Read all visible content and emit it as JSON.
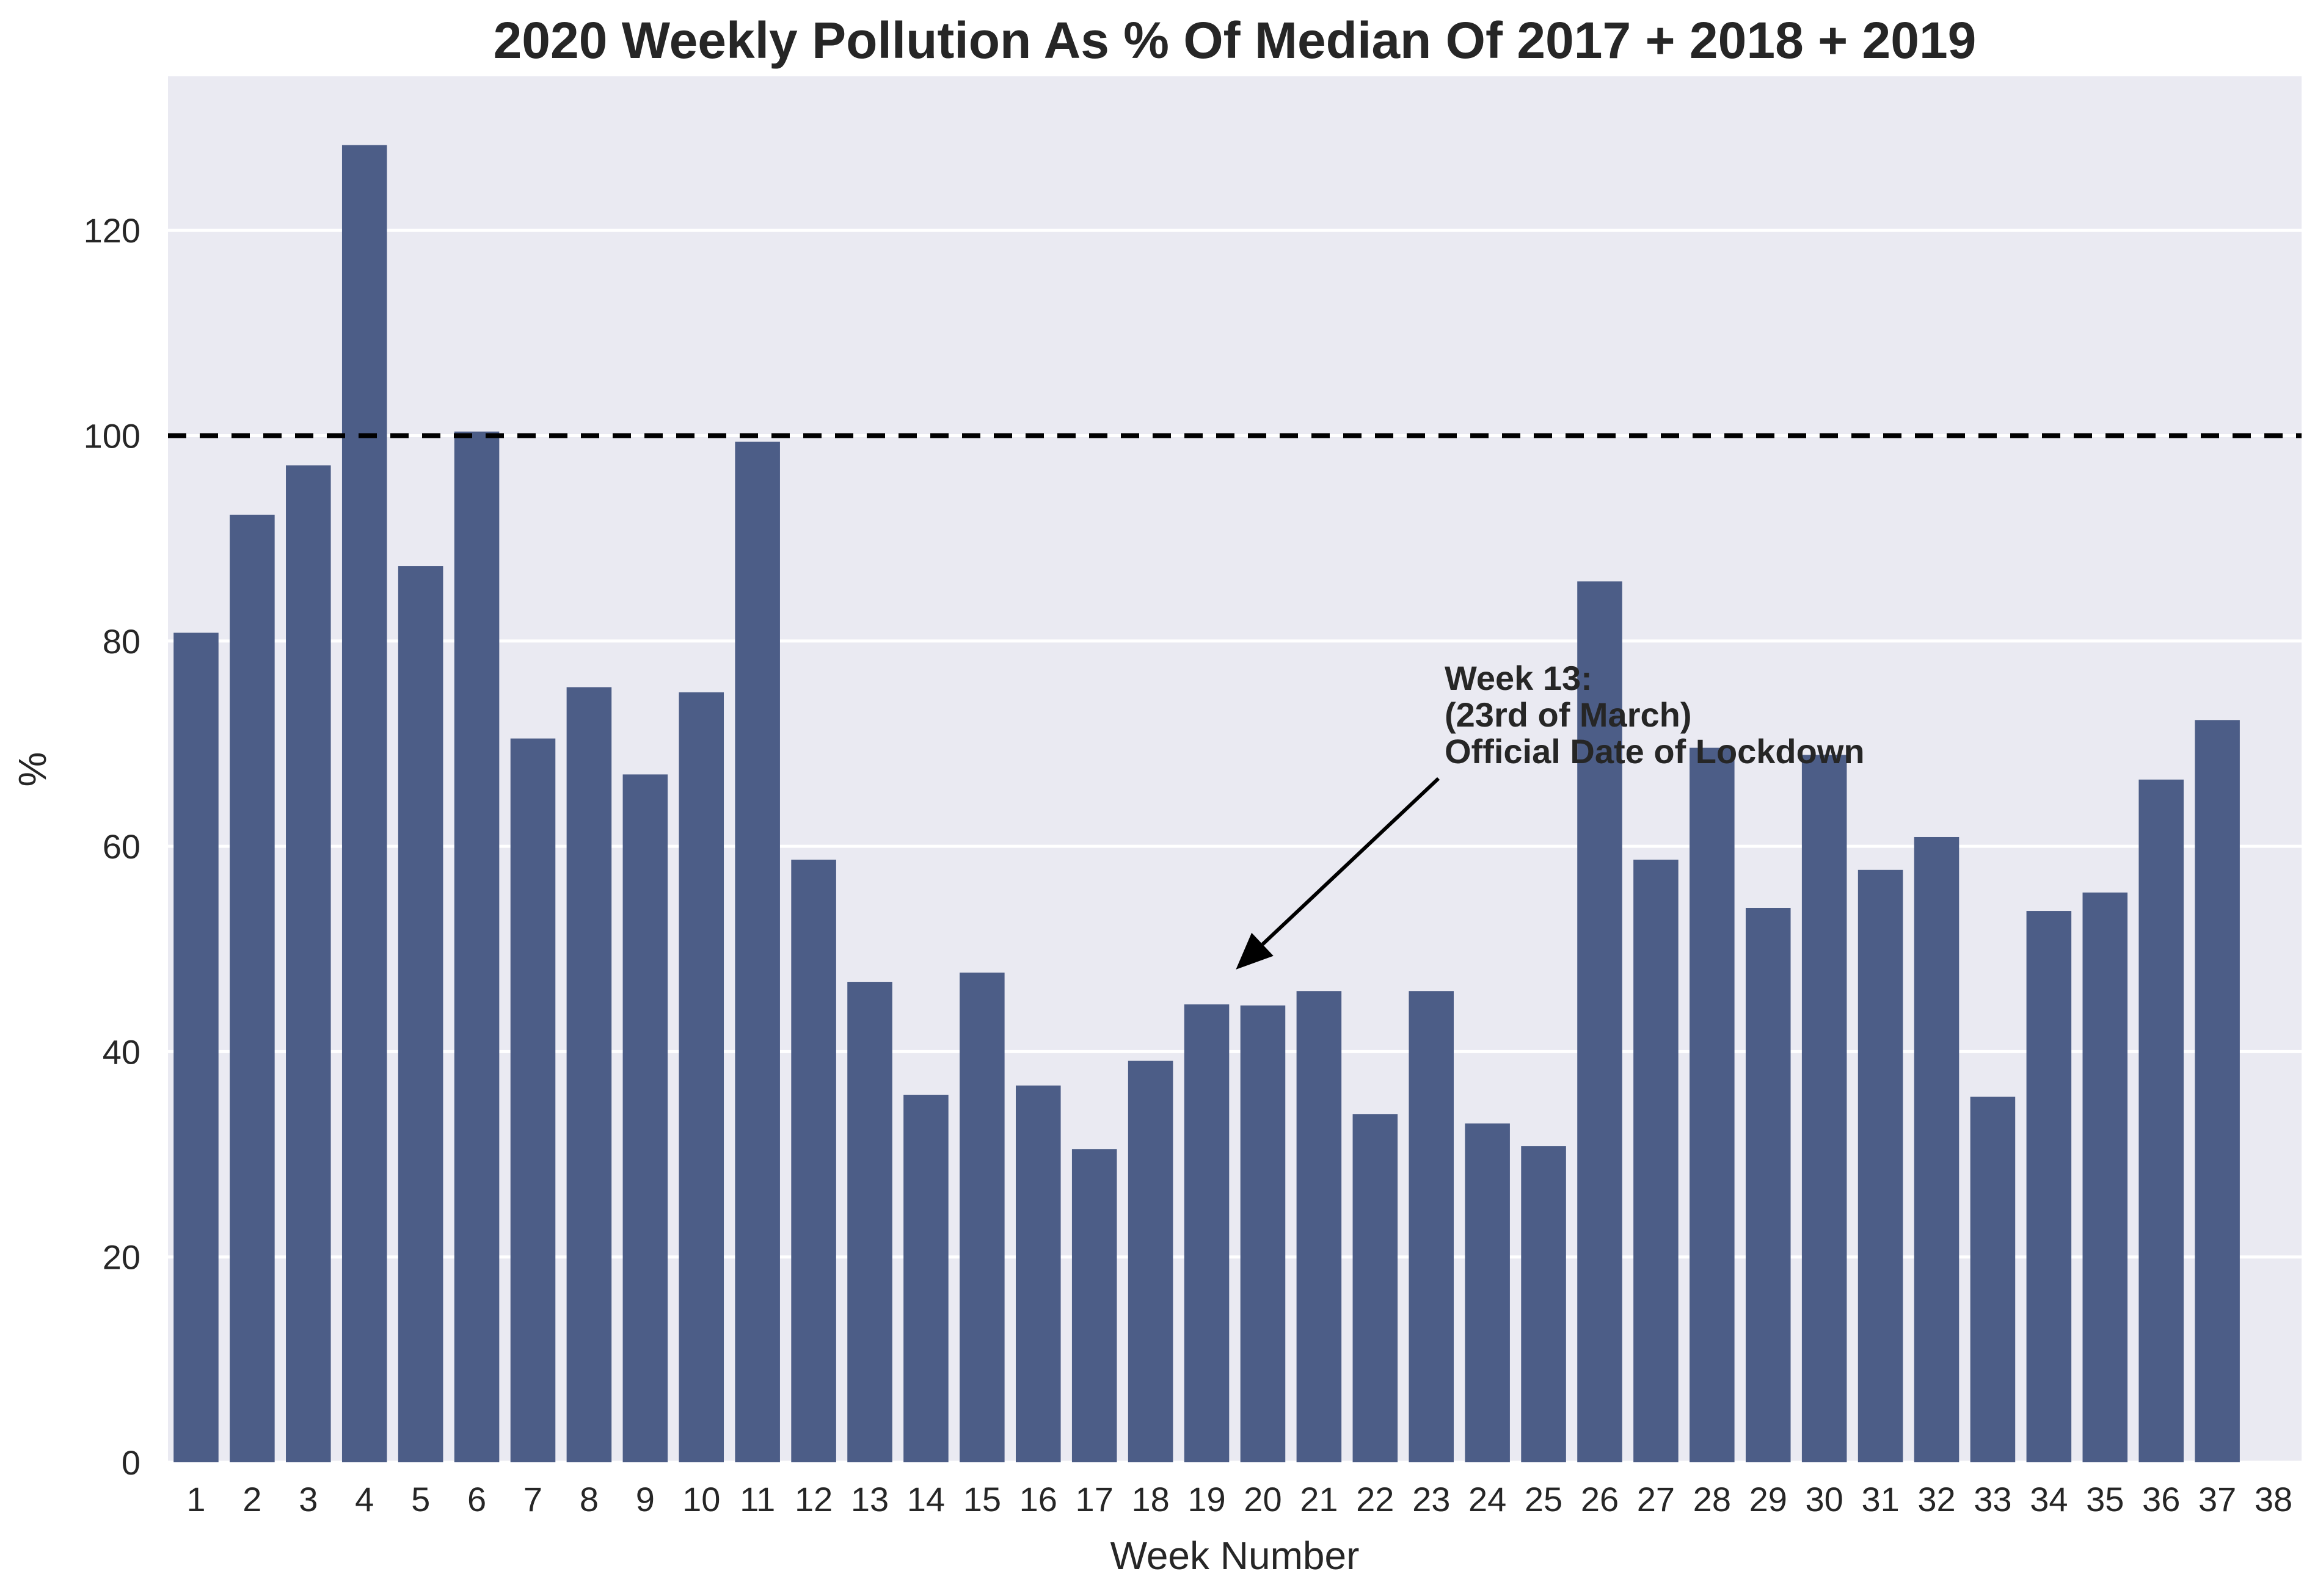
{
  "chart_data": {
    "type": "bar",
    "title": "2020 Weekly Pollution As % Of Median Of 2017 + 2018 + 2019",
    "xlabel": "Week Number",
    "ylabel": "%",
    "categories": [
      "1",
      "2",
      "3",
      "4",
      "5",
      "6",
      "7",
      "8",
      "9",
      "10",
      "11",
      "12",
      "13",
      "14",
      "15",
      "16",
      "17",
      "18",
      "19",
      "20",
      "21",
      "22",
      "23",
      "24",
      "25",
      "26",
      "27",
      "28",
      "29",
      "30",
      "31",
      "32",
      "33",
      "34",
      "35",
      "36",
      "37",
      "38"
    ],
    "values": [
      80.8,
      92.3,
      97.1,
      128.3,
      87.3,
      100.4,
      70.5,
      75.5,
      67.0,
      75.0,
      99.4,
      58.7,
      46.8,
      35.8,
      47.7,
      36.7,
      30.5,
      39.1,
      44.6,
      44.5,
      45.9,
      33.9,
      45.9,
      33.0,
      30.8,
      85.8,
      58.7,
      69.6,
      54.0,
      68.9,
      57.7,
      60.9,
      35.6,
      53.7,
      55.5,
      66.5,
      72.3,
      null
    ],
    "ylim": [
      0,
      135
    ],
    "yticks": [
      0,
      20,
      40,
      60,
      80,
      100,
      120
    ],
    "grid": true,
    "legend": "none",
    "bar_color": "#4c5d87",
    "background_color": "#eaeaf2",
    "reference_line": {
      "y": 100,
      "style": "dashed",
      "color": "#000000"
    },
    "annotation": {
      "lines": [
        "Week 13:",
        "(23rd of March)",
        "Official Date of Lockdown"
      ],
      "arrow_to": {
        "x": "20",
        "y": 48
      }
    }
  }
}
